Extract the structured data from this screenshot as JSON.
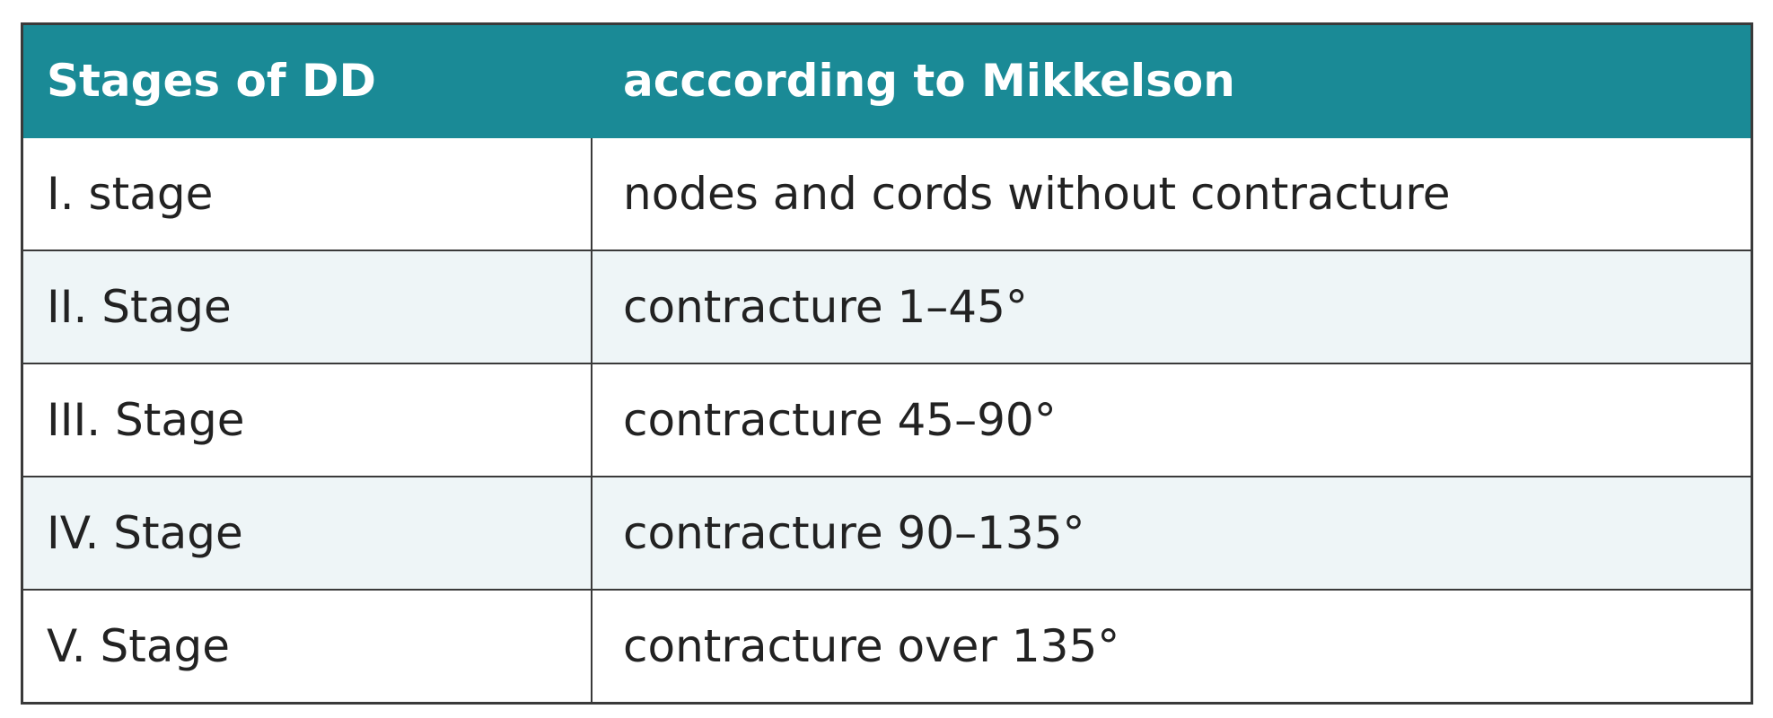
{
  "table": {
    "header": [
      "Stages of DD",
      "acccording to Mikkelson"
    ],
    "rows": [
      [
        "I. stage",
        "nodes and cords without contracture"
      ],
      [
        "II. Stage",
        "contracture 1–45°"
      ],
      [
        "III. Stage",
        "contracture 45–90°"
      ],
      [
        "IV. Stage",
        "contracture 90–135°"
      ],
      [
        "V. Stage",
        "contracture over 135°"
      ]
    ]
  }
}
